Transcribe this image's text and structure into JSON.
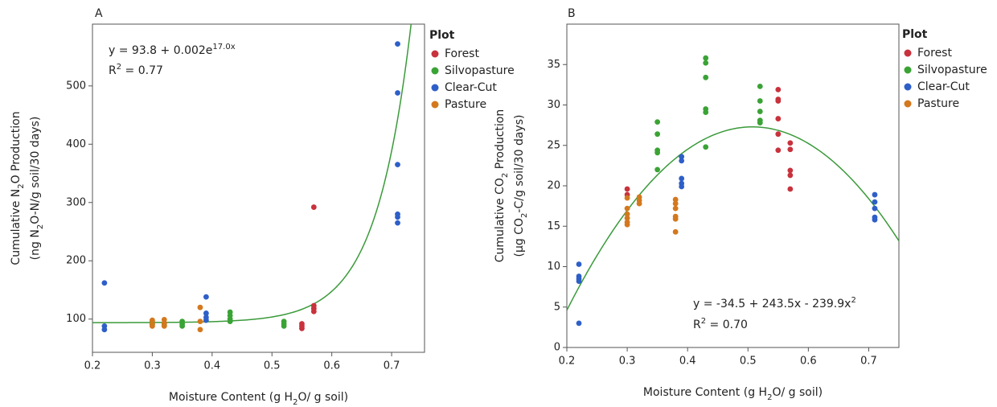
{
  "chart_data": [
    {
      "type": "scatter",
      "panel": "A",
      "x_label": [
        "Moisture Content (g H",
        "2",
        "O/ g soil)"
      ],
      "y_label": [
        [
          "Cumulative N",
          "2",
          "O Production"
        ],
        [
          "(ng N",
          "2",
          "O-N/g soil/30 days)"
        ]
      ],
      "equation": [
        "y = 93.8 + 0.002e",
        "17.0x"
      ],
      "r_squared": [
        "R",
        "2",
        " = 0.77"
      ],
      "fit": {
        "model": "exponential",
        "coefficients": [
          93.8,
          0.002,
          17.0
        ],
        "color": "#3a9a3a"
      },
      "xlim": [
        0.2,
        0.755
      ],
      "ylim": [
        43,
        606
      ],
      "xticks": [
        0.2,
        0.3,
        0.4,
        0.5,
        0.6,
        0.7
      ],
      "yticks": [
        100,
        200,
        300,
        400,
        500
      ],
      "legend": {
        "title": "Plot",
        "position": "right"
      },
      "series": [
        {
          "name": "Forest",
          "color": "#c8323c",
          "x": [
            0.55,
            0.55,
            0.55,
            0.57,
            0.57,
            0.57,
            0.57
          ],
          "values": [
            92,
            88,
            84,
            292,
            123,
            118,
            113
          ]
        },
        {
          "name": "Silvopasture",
          "color": "#3aa335",
          "x": [
            0.3,
            0.3,
            0.32,
            0.32,
            0.35,
            0.35,
            0.35,
            0.43,
            0.43,
            0.43,
            0.43,
            0.52,
            0.52,
            0.52
          ],
          "values": [
            95,
            91,
            93,
            89,
            96,
            92,
            88,
            112,
            106,
            100,
            96,
            96,
            92,
            88
          ]
        },
        {
          "name": "Clear-Cut",
          "color": "#2e5fc8",
          "x": [
            0.22,
            0.22,
            0.22,
            0.39,
            0.39,
            0.39,
            0.39,
            0.71,
            0.71,
            0.71,
            0.71,
            0.71,
            0.71
          ],
          "values": [
            162,
            88,
            82,
            138,
            110,
            103,
            98,
            572,
            488,
            365,
            280,
            275,
            265
          ]
        },
        {
          "name": "Pasture",
          "color": "#d4781e",
          "x": [
            0.3,
            0.3,
            0.3,
            0.32,
            0.32,
            0.32,
            0.38,
            0.38,
            0.38
          ],
          "values": [
            98,
            92,
            88,
            99,
            93,
            88,
            120,
            96,
            82
          ]
        }
      ]
    },
    {
      "type": "scatter",
      "panel": "B",
      "x_label": [
        "Moisture Content (g H",
        "2",
        "O/ g soil)"
      ],
      "y_label": [
        [
          "Cumulative CO",
          "2",
          " Production"
        ],
        [
          "(µg CO",
          "2",
          "-C/g soil/30 days)"
        ]
      ],
      "equation": [
        "y = -34.5 + 243.5x - 239.9x",
        "2"
      ],
      "r_squared": [
        "R",
        "2",
        " = 0.70"
      ],
      "fit": {
        "model": "quadratic",
        "coefficients": [
          -34.5,
          243.5,
          -239.9
        ],
        "color": "#3a9a3a"
      },
      "xlim": [
        0.2,
        0.75
      ],
      "ylim": [
        0,
        40
      ],
      "xticks": [
        0.2,
        0.3,
        0.4,
        0.5,
        0.6,
        0.7
      ],
      "yticks": [
        0,
        5,
        10,
        15,
        20,
        25,
        30,
        35
      ],
      "legend": {
        "title": "Plot",
        "position": "right"
      },
      "series": [
        {
          "name": "Forest",
          "color": "#c8323c",
          "x": [
            0.3,
            0.3,
            0.55,
            0.55,
            0.55,
            0.55,
            0.55,
            0.55,
            0.57,
            0.57,
            0.57,
            0.57,
            0.57
          ],
          "values": [
            19.6,
            18.9,
            31.9,
            30.7,
            30.5,
            28.3,
            26.4,
            24.4,
            25.3,
            24.5,
            21.9,
            21.3,
            19.6
          ]
        },
        {
          "name": "Silvopasture",
          "color": "#3aa335",
          "x": [
            0.35,
            0.35,
            0.35,
            0.35,
            0.35,
            0.43,
            0.43,
            0.43,
            0.43,
            0.43,
            0.43,
            0.52,
            0.52,
            0.52,
            0.52,
            0.52
          ],
          "values": [
            27.9,
            26.4,
            24.4,
            24.1,
            22.0,
            35.8,
            35.2,
            33.4,
            29.5,
            29.1,
            24.8,
            32.3,
            30.5,
            29.2,
            28.1,
            27.8
          ]
        },
        {
          "name": "Clear-Cut",
          "color": "#2e5fc8",
          "x": [
            0.22,
            0.22,
            0.22,
            0.22,
            0.22,
            0.39,
            0.39,
            0.39,
            0.39,
            0.39,
            0.71,
            0.71,
            0.71,
            0.71,
            0.71
          ],
          "values": [
            10.3,
            8.8,
            8.5,
            8.2,
            3.0,
            23.6,
            23.1,
            20.9,
            20.3,
            19.9,
            18.9,
            18.0,
            17.2,
            16.1,
            15.8
          ]
        },
        {
          "name": "Pasture",
          "color": "#d4781e",
          "x": [
            0.3,
            0.3,
            0.3,
            0.3,
            0.3,
            0.3,
            0.32,
            0.32,
            0.32,
            0.38,
            0.38,
            0.38,
            0.38,
            0.38,
            0.38
          ],
          "values": [
            18.5,
            17.2,
            16.5,
            16.0,
            15.5,
            15.2,
            18.6,
            18.2,
            17.8,
            18.3,
            17.8,
            17.2,
            16.2,
            15.9,
            14.3
          ]
        }
      ]
    }
  ]
}
